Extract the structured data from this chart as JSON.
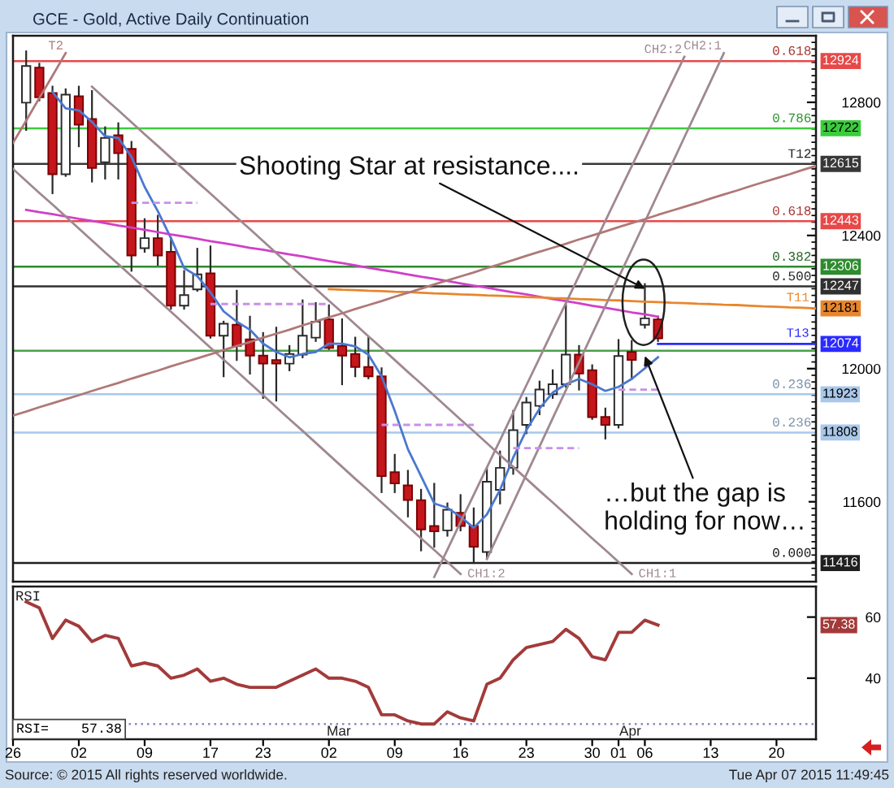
{
  "chart_data": [
    {
      "type": "candlestick",
      "title": "GCE - Gold, Active Daily Continuation",
      "categories": [
        "26",
        null,
        null,
        null,
        null,
        "02",
        null,
        null,
        null,
        null,
        "09",
        null,
        null,
        null,
        null,
        "17",
        null,
        null,
        null,
        "23",
        null,
        null,
        null,
        null,
        "02",
        null,
        null,
        null,
        null,
        "09",
        null,
        null,
        null,
        null,
        "16",
        null,
        null,
        null,
        null,
        "23",
        null,
        null,
        null,
        null,
        "30",
        null,
        "01",
        null,
        "06",
        null,
        null,
        null,
        null,
        "13",
        null,
        null,
        null,
        null,
        "20",
        null,
        null,
        null
      ],
      "ohlc": [
        null,
        [
          12799,
          12953,
          12717,
          12909
        ],
        [
          12904,
          12916,
          12806,
          12815
        ],
        [
          12828,
          12847,
          12527,
          12584
        ],
        [
          12584,
          12839,
          12579,
          12823
        ],
        [
          12818,
          12847,
          12668,
          12733
        ],
        [
          12750,
          12834,
          12562,
          12603
        ],
        [
          12620,
          12725,
          12571,
          12693
        ],
        [
          12701,
          12737,
          12571,
          12647
        ],
        [
          12660,
          12681,
          12294,
          12340
        ],
        [
          12362,
          12449,
          12351,
          12392
        ],
        [
          12392,
          12459,
          12312,
          12340
        ],
        [
          12351,
          12392,
          12180,
          12189
        ],
        [
          12189,
          12293,
          12180,
          12221
        ],
        [
          12238,
          12360,
          12234,
          12283
        ],
        [
          12286,
          12367,
          12093,
          12099
        ],
        [
          12099,
          12141,
          11977,
          12135
        ],
        [
          12132,
          12234,
          12026,
          12068
        ],
        [
          12088,
          12156,
          11985,
          12039
        ],
        [
          12039,
          12107,
          11912,
          12015
        ],
        [
          12026,
          12123,
          11904,
          12015
        ],
        [
          12015,
          12068,
          11995,
          12044
        ],
        [
          12042,
          12205,
          12034,
          12099
        ],
        [
          12093,
          12197,
          12083,
          12141
        ],
        [
          12148,
          12190,
          12059,
          12062
        ],
        [
          12068,
          12148,
          11953,
          12039
        ],
        [
          12044,
          12093,
          11977,
          12005
        ],
        [
          12005,
          12093,
          11971,
          11977
        ],
        [
          11977,
          12001,
          11629,
          11677
        ],
        [
          11689,
          11741,
          11629,
          11655
        ],
        [
          11649,
          11693,
          11556,
          11605
        ],
        [
          11605,
          11636,
          11454,
          11517
        ],
        [
          11527,
          11654,
          11465,
          11511
        ],
        [
          11514,
          11595,
          11498,
          11576
        ],
        [
          11567,
          11620,
          11514,
          11527
        ],
        [
          11527,
          11580,
          11416,
          11465
        ],
        [
          11449,
          11702,
          11434,
          11660
        ],
        [
          11636,
          11751,
          11595,
          11702
        ],
        [
          11702,
          11873,
          11684,
          11815
        ],
        [
          11831,
          11912,
          11806,
          11898
        ],
        [
          11888,
          11961,
          11863,
          11937
        ],
        [
          11923,
          11995,
          11912,
          11953
        ],
        [
          11953,
          12197,
          11945,
          12042
        ],
        [
          12042,
          12068,
          11937,
          11985
        ],
        [
          11995,
          12010,
          11849,
          11854
        ],
        [
          11855,
          11880,
          11790,
          11831
        ],
        [
          11831,
          12086,
          11823,
          12038
        ],
        [
          12050,
          12083,
          11969,
          12026
        ],
        [
          12132,
          12254,
          12123,
          12151
        ],
        [
          12148,
          12156,
          12083,
          12091
        ],
        null,
        null,
        null,
        null,
        null,
        null,
        null,
        null,
        null,
        null,
        null,
        null
      ],
      "series": [
        {
          "type": "line",
          "color": "#4a78d0",
          "values": [
            null,
            null,
            null,
            12831,
            12782,
            12776,
            12741,
            12698,
            12693,
            12636,
            12546,
            12473,
            12392,
            12302,
            12278,
            12229,
            12172,
            12141,
            12117,
            12075,
            12050,
            12034,
            12044,
            12050,
            12075,
            12075,
            12067,
            12042,
            11977,
            11873,
            11758,
            11677,
            11595,
            11582,
            11555,
            11522,
            11562,
            11636,
            11733,
            11815,
            11880,
            11928,
            11953,
            11969,
            11953,
            11933,
            11945,
            11969,
            12001,
            12034,
            null,
            null,
            null,
            null,
            null,
            null,
            null,
            null,
            null,
            null,
            null,
            null
          ]
        },
        {
          "type": "line",
          "color": "#d040c8",
          "values": [
            null,
            12477,
            12470,
            12464,
            12457,
            12450,
            12444,
            12437,
            12430,
            12424,
            12417,
            12410,
            12403,
            12397,
            12390,
            12383,
            12377,
            12370,
            12363,
            12357,
            12350,
            12343,
            12337,
            12330,
            12323,
            12317,
            12310,
            12303,
            12296,
            12290,
            12283,
            12276,
            12270,
            12263,
            12256,
            12249,
            12243,
            12236,
            12229,
            12223,
            12216,
            12209,
            12203,
            12196,
            12189,
            12183,
            12176,
            12169,
            12163,
            12156,
            null,
            null,
            null,
            null,
            null,
            null,
            null,
            null,
            null,
            null,
            null,
            null
          ]
        },
        {
          "type": "line",
          "name": "T11",
          "color": "#e8862c",
          "values": [
            null,
            null,
            null,
            null,
            null,
            null,
            null,
            null,
            null,
            null,
            null,
            null,
            null,
            null,
            null,
            null,
            null,
            null,
            null,
            null,
            null,
            null,
            null,
            null,
            12239,
            12237,
            12236,
            12234,
            12233,
            12231,
            12230,
            12228,
            12226,
            12225,
            12223,
            12222,
            12220,
            12219,
            12217,
            12215,
            12214,
            12212,
            12211,
            12209,
            12208,
            12206,
            12205,
            12203,
            12201,
            12200,
            12198,
            12197,
            12195,
            12194,
            12192,
            12191,
            12189,
            12187,
            12186,
            12184,
            12183,
            12181
          ],
          "value_labels": [
            null,
            null,
            null,
            null,
            null,
            null,
            null,
            null,
            null,
            null,
            null,
            null,
            null,
            null,
            null,
            null,
            null,
            null,
            null,
            null,
            null,
            null,
            null,
            null,
            null,
            null,
            null,
            null,
            null,
            null,
            null,
            null,
            null,
            null,
            null,
            null,
            null,
            null,
            null,
            null,
            null,
            null,
            null,
            null,
            null,
            null,
            null,
            null,
            null,
            null,
            null,
            null,
            null,
            null,
            null,
            null,
            null,
            null,
            null,
            null,
            null,
            "12181"
          ]
        },
        {
          "type": "line",
          "name": "T13",
          "color": "#2a2aff",
          "values": [
            null,
            null,
            null,
            null,
            null,
            null,
            null,
            null,
            null,
            null,
            null,
            null,
            null,
            null,
            null,
            null,
            null,
            null,
            null,
            null,
            null,
            null,
            null,
            null,
            null,
            null,
            null,
            null,
            null,
            null,
            null,
            null,
            null,
            null,
            null,
            null,
            null,
            null,
            null,
            null,
            null,
            null,
            null,
            null,
            null,
            null,
            null,
            null,
            null,
            12074,
            12074,
            12074,
            12074,
            12074,
            12074,
            12074,
            12074,
            12074,
            12074,
            12074,
            12074,
            12074
          ],
          "value_labels": [
            null,
            null,
            null,
            null,
            null,
            null,
            null,
            null,
            null,
            null,
            null,
            null,
            null,
            null,
            null,
            null,
            null,
            null,
            null,
            null,
            null,
            null,
            null,
            null,
            null,
            null,
            null,
            null,
            null,
            null,
            null,
            null,
            null,
            null,
            null,
            null,
            null,
            null,
            null,
            null,
            null,
            null,
            null,
            null,
            null,
            null,
            null,
            null,
            null,
            null,
            null,
            null,
            null,
            null,
            null,
            null,
            null,
            null,
            null,
            null,
            null,
            "12074"
          ]
        },
        {
          "type": "line",
          "name": "CH1:1",
          "color": "#a08890",
          "values": [
            null,
            null,
            null,
            null,
            null,
            null,
            12847,
            12811,
            12776,
            12740,
            12704,
            12669,
            12633,
            12597,
            12561,
            12526,
            12490,
            12454,
            12419,
            12383,
            12347,
            12312,
            12276,
            12240,
            12204,
            12169,
            12133,
            12097,
            12062,
            12026,
            11990,
            11955,
            11919,
            11883,
            11847,
            11812,
            11776,
            11740,
            11705,
            11669,
            11633,
            11598,
            11562,
            11526,
            11490,
            11455,
            11419,
            11383,
            null,
            null,
            null,
            null,
            null,
            null,
            null,
            null,
            null,
            null,
            null,
            null,
            null,
            null
          ]
        },
        {
          "type": "line",
          "name": "CH1:2",
          "color": "#a08890",
          "values": [
            12600,
            12564,
            12528,
            12493,
            12457,
            12421,
            12385,
            12349,
            12314,
            12278,
            12242,
            12206,
            12171,
            12135,
            12099,
            12063,
            12027,
            11992,
            11956,
            11920,
            11884,
            11848,
            11813,
            11777,
            11741,
            11705,
            11669,
            11634,
            11598,
            11562,
            11526,
            11490,
            11455,
            11419,
            11383,
            null,
            null,
            null,
            null,
            null,
            null,
            null,
            null,
            null,
            null,
            null,
            null,
            null,
            null,
            null,
            null,
            null,
            null,
            null,
            null,
            null,
            null,
            null,
            null,
            null,
            null,
            null
          ]
        },
        {
          "type": "line",
          "name": "CH2:2",
          "color": "#a08890",
          "values": [
            null,
            null,
            null,
            null,
            null,
            null,
            null,
            null,
            null,
            null,
            null,
            null,
            null,
            null,
            null,
            null,
            null,
            null,
            null,
            null,
            null,
            null,
            null,
            null,
            null,
            null,
            null,
            null,
            null,
            null,
            null,
            null,
            11374,
            11456,
            11539,
            11621,
            11703,
            11785,
            11868,
            11950,
            12032,
            12115,
            12197,
            12279,
            12361,
            12444,
            12526,
            12608,
            12690,
            12773,
            12855,
            12937,
            null,
            null,
            null,
            null,
            null,
            null,
            null,
            null,
            null,
            null
          ]
        },
        {
          "type": "line",
          "name": "CH2:1",
          "color": "#a08890",
          "values": [
            null,
            null,
            null,
            null,
            null,
            null,
            null,
            null,
            null,
            null,
            null,
            null,
            null,
            null,
            null,
            null,
            null,
            null,
            null,
            null,
            null,
            null,
            null,
            null,
            null,
            null,
            null,
            null,
            null,
            null,
            null,
            null,
            null,
            null,
            null,
            null,
            11428,
            11513,
            11597,
            11682,
            11766,
            11851,
            11935,
            12019,
            12104,
            12188,
            12273,
            12357,
            12441,
            12526,
            12610,
            12695,
            12779,
            12863,
            12948,
            null,
            null,
            null,
            null,
            null,
            null,
            null
          ]
        },
        {
          "type": "line",
          "name": "T2",
          "color": "#b07878",
          "values": [
            12678,
            12745,
            12813,
            12880,
            12948,
            null,
            null,
            null,
            null,
            null,
            null,
            null,
            null,
            null,
            null,
            null,
            null,
            null,
            null,
            null,
            null,
            null,
            null,
            null,
            null,
            null,
            null,
            null,
            null,
            null,
            null,
            null,
            null,
            null,
            null,
            null,
            null,
            null,
            null,
            null,
            null,
            null,
            null,
            null,
            null,
            null,
            null,
            null,
            null,
            null,
            null,
            null,
            null,
            null,
            null,
            null,
            null,
            null,
            null,
            null,
            null,
            null
          ]
        },
        {
          "type": "line",
          "color": "#b07878",
          "values": [
            11859,
            11871,
            11884,
            11896,
            11908,
            11920,
            11933,
            11945,
            11957,
            11970,
            11982,
            11994,
            12007,
            12019,
            12031,
            12043,
            12056,
            12068,
            12080,
            12093,
            12105,
            12117,
            12130,
            12142,
            12154,
            12166,
            12179,
            12191,
            12203,
            12216,
            12228,
            12240,
            12253,
            12265,
            12277,
            12289,
            12302,
            12314,
            12326,
            12339,
            12351,
            12363,
            12375,
            12388,
            12400,
            12412,
            12425,
            12437,
            12449,
            12462,
            12474,
            12486,
            12498,
            12511,
            12523,
            12535,
            12548,
            12560,
            12572,
            12584,
            12597,
            12609
          ]
        },
        {
          "type": "line",
          "color": "#c890e8",
          "line_style": "dashed",
          "values": [
            null,
            null,
            null,
            null,
            null,
            null,
            null,
            null,
            null,
            12498,
            12498,
            12498,
            12498,
            12498,
            12498,
            null,
            null,
            null,
            null,
            null,
            null,
            null,
            null,
            null,
            null,
            null,
            null,
            null,
            null,
            null,
            null,
            null,
            null,
            null,
            null,
            null,
            null,
            null,
            null,
            null,
            null,
            null,
            null,
            null,
            null,
            null,
            null,
            null,
            null,
            null,
            null,
            null,
            null,
            null,
            null,
            null,
            null,
            null,
            null,
            null,
            null,
            null
          ]
        },
        {
          "type": "line",
          "color": "#c890e8",
          "line_style": "dashed",
          "values": [
            null,
            null,
            null,
            null,
            null,
            null,
            null,
            null,
            null,
            null,
            null,
            null,
            null,
            null,
            null,
            12194,
            12194,
            12194,
            12194,
            12194,
            12194,
            12194,
            12194,
            12194,
            12194,
            null,
            null,
            null,
            null,
            null,
            null,
            null,
            null,
            null,
            null,
            null,
            null,
            null,
            null,
            null,
            null,
            null,
            null,
            null,
            null,
            null,
            null,
            null,
            null,
            null,
            null,
            null,
            null,
            null,
            null,
            null,
            null,
            null,
            null,
            null,
            null,
            null
          ]
        },
        {
          "type": "line",
          "color": "#c890e8",
          "line_style": "dashed",
          "values": [
            null,
            null,
            null,
            null,
            null,
            null,
            null,
            null,
            null,
            null,
            null,
            null,
            null,
            null,
            null,
            null,
            null,
            null,
            null,
            null,
            null,
            null,
            null,
            null,
            null,
            null,
            null,
            null,
            11831,
            11831,
            11831,
            11831,
            11831,
            11831,
            11831,
            11831,
            null,
            null,
            null,
            null,
            null,
            null,
            null,
            null,
            null,
            null,
            null,
            null,
            null,
            null,
            null,
            null,
            null,
            null,
            null,
            null,
            null,
            null,
            null,
            null,
            null,
            null
          ]
        },
        {
          "type": "line",
          "color": "#c890e8",
          "line_style": "dashed",
          "values": [
            null,
            null,
            null,
            null,
            null,
            null,
            null,
            null,
            null,
            null,
            null,
            null,
            null,
            null,
            null,
            null,
            null,
            null,
            null,
            null,
            null,
            null,
            null,
            null,
            null,
            null,
            null,
            null,
            null,
            null,
            null,
            null,
            null,
            null,
            null,
            null,
            null,
            null,
            11761,
            11761,
            11761,
            11761,
            11761,
            11761,
            null,
            null,
            null,
            null,
            null,
            null,
            null,
            null,
            null,
            null,
            null,
            null,
            null,
            null,
            null,
            null,
            null,
            null
          ]
        },
        {
          "type": "line",
          "color": "#c890e8",
          "line_style": "dashed",
          "values": [
            null,
            null,
            null,
            null,
            null,
            null,
            null,
            null,
            null,
            null,
            null,
            null,
            null,
            null,
            null,
            null,
            null,
            null,
            null,
            null,
            null,
            null,
            null,
            null,
            null,
            null,
            null,
            null,
            null,
            null,
            null,
            null,
            null,
            null,
            null,
            null,
            null,
            null,
            null,
            null,
            null,
            null,
            null,
            null,
            null,
            null,
            11937,
            11937,
            11937,
            11937,
            null,
            null,
            null,
            null,
            null,
            null,
            null,
            null,
            null,
            null,
            null,
            null
          ]
        }
      ],
      "ref_lines": [
        {
          "axis": "y",
          "value": 12924,
          "label": "12924",
          "color": "#e84848"
        },
        {
          "axis": "y",
          "value": 12722,
          "label": "12722",
          "color": "#3ccc3c"
        },
        {
          "axis": "y",
          "value": 12615,
          "label": "12615",
          "color": "#383838"
        },
        {
          "axis": "y",
          "value": 12443,
          "label": "12443",
          "color": "#e84848"
        },
        {
          "axis": "y",
          "value": 12306,
          "label": "12306",
          "color": "#2e8b2e"
        },
        {
          "axis": "y",
          "value": 12247,
          "label": "12247",
          "color": "#303030"
        },
        {
          "axis": "y",
          "value": 12054,
          "color": "#4aa04a"
        },
        {
          "axis": "y",
          "value": 11923,
          "label": "11923",
          "color": "#a9c8ea"
        },
        {
          "axis": "y",
          "value": 11808,
          "label": "11808",
          "color": "#a9c8ea"
        },
        {
          "axis": "y",
          "value": 11416,
          "label": "11416",
          "color": "#202020"
        }
      ],
      "annotations": [
        {
          "text": "Shooting Star at resistance....",
          "x": "06",
          "y": 12240
        },
        {
          "text": "…but the gap is\nholding for now…",
          "x": "06",
          "y": 12038
        },
        {
          "text": "0.618",
          "y": 12924
        },
        {
          "text": "0.786",
          "y": 12722
        },
        {
          "text": "T12",
          "y": 12615
        },
        {
          "text": "0.618",
          "y": 12443
        },
        {
          "text": "0.382",
          "y": 12306
        },
        {
          "text": "0.500",
          "y": 12247
        },
        {
          "text": "0.236",
          "y": 11923
        },
        {
          "text": "0.236",
          "y": 11808
        },
        {
          "text": "0.000",
          "y": 11416
        }
      ],
      "ylim": [
        11360,
        13000
      ],
      "yticks": [
        11600,
        12000,
        12400,
        12800
      ],
      "tick_labels": "y"
    },
    {
      "type": "line",
      "title": "RSI",
      "categories": [
        "26",
        null,
        null,
        null,
        null,
        "02",
        null,
        null,
        null,
        null,
        "09",
        null,
        null,
        null,
        null,
        "17",
        null,
        null,
        null,
        "23",
        null,
        null,
        null,
        null,
        "02",
        null,
        null,
        null,
        null,
        "09",
        null,
        null,
        null,
        null,
        "16",
        null,
        null,
        null,
        null,
        "23",
        null,
        null,
        null,
        null,
        "30",
        null,
        "01",
        null,
        "06",
        null,
        null,
        null,
        null,
        "13",
        null,
        null,
        null,
        null,
        "20",
        null,
        null,
        null
      ],
      "series": [
        {
          "color": "#a33a3a",
          "values": [
            null,
            65,
            63,
            53,
            59,
            57,
            52,
            54,
            53,
            44,
            45,
            44,
            40,
            41,
            43,
            39,
            40,
            38,
            37,
            37,
            37,
            39,
            41,
            43,
            40,
            40,
            39,
            37,
            28,
            28,
            26,
            25,
            25,
            29,
            27,
            26,
            38,
            40,
            46,
            50,
            51,
            52,
            56,
            53,
            47,
            46,
            55,
            55,
            59,
            57.38,
            null,
            null,
            null,
            null,
            null,
            null,
            null,
            null,
            null,
            null,
            null,
            null
          ]
        }
      ],
      "ref_lines": [
        {
          "axis": "y",
          "value": 25,
          "color": "#8a8ac8",
          "line_style": "dotted"
        }
      ],
      "annotations": [
        "Mar",
        "Apr",
        "RSI=    57.38",
        "Source: © 2015 All rights reserved worldwide.",
        "Tue Apr 07 2015 11:49:45",
        {
          "text": "57.38",
          "y": 57.38
        }
      ],
      "ylim": [
        20,
        70
      ],
      "yticks": [
        40,
        60
      ]
    }
  ]
}
